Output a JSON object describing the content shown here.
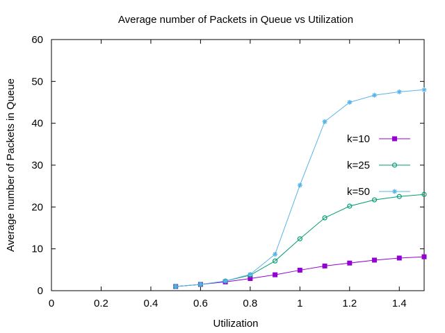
{
  "chart_data": {
    "type": "line",
    "title": "Average number of Packets in Queue vs Utilization",
    "xlabel": "Utilization",
    "ylabel": "Average number of Packets in Queue",
    "xlim": [
      0,
      1.5
    ],
    "ylim": [
      0,
      60
    ],
    "xticks": [
      0,
      0.2,
      0.4,
      0.6,
      0.8,
      1,
      1.2,
      1.4
    ],
    "yticks": [
      0,
      10,
      20,
      30,
      40,
      50,
      60
    ],
    "legend_position": "right",
    "grid": false,
    "x": [
      0.5,
      0.6,
      0.7,
      0.8,
      0.9,
      1.0,
      1.1,
      1.2,
      1.3,
      1.4,
      1.5
    ],
    "series": [
      {
        "name": "k=10",
        "color": "#9400d3",
        "marker": "square",
        "values": [
          1.0,
          1.5,
          2.1,
          2.9,
          3.8,
          4.9,
          5.9,
          6.6,
          7.3,
          7.8,
          8.1
        ]
      },
      {
        "name": "k=25",
        "color": "#009e73",
        "marker": "circle",
        "values": [
          1.0,
          1.5,
          2.3,
          3.7,
          7.1,
          12.4,
          17.4,
          20.2,
          21.7,
          22.5,
          23.0
        ]
      },
      {
        "name": "k=50",
        "color": "#56b4e9",
        "marker": "star",
        "values": [
          1.0,
          1.5,
          2.3,
          3.9,
          8.7,
          25.2,
          40.4,
          45.0,
          46.7,
          47.5,
          48.0
        ]
      }
    ]
  }
}
